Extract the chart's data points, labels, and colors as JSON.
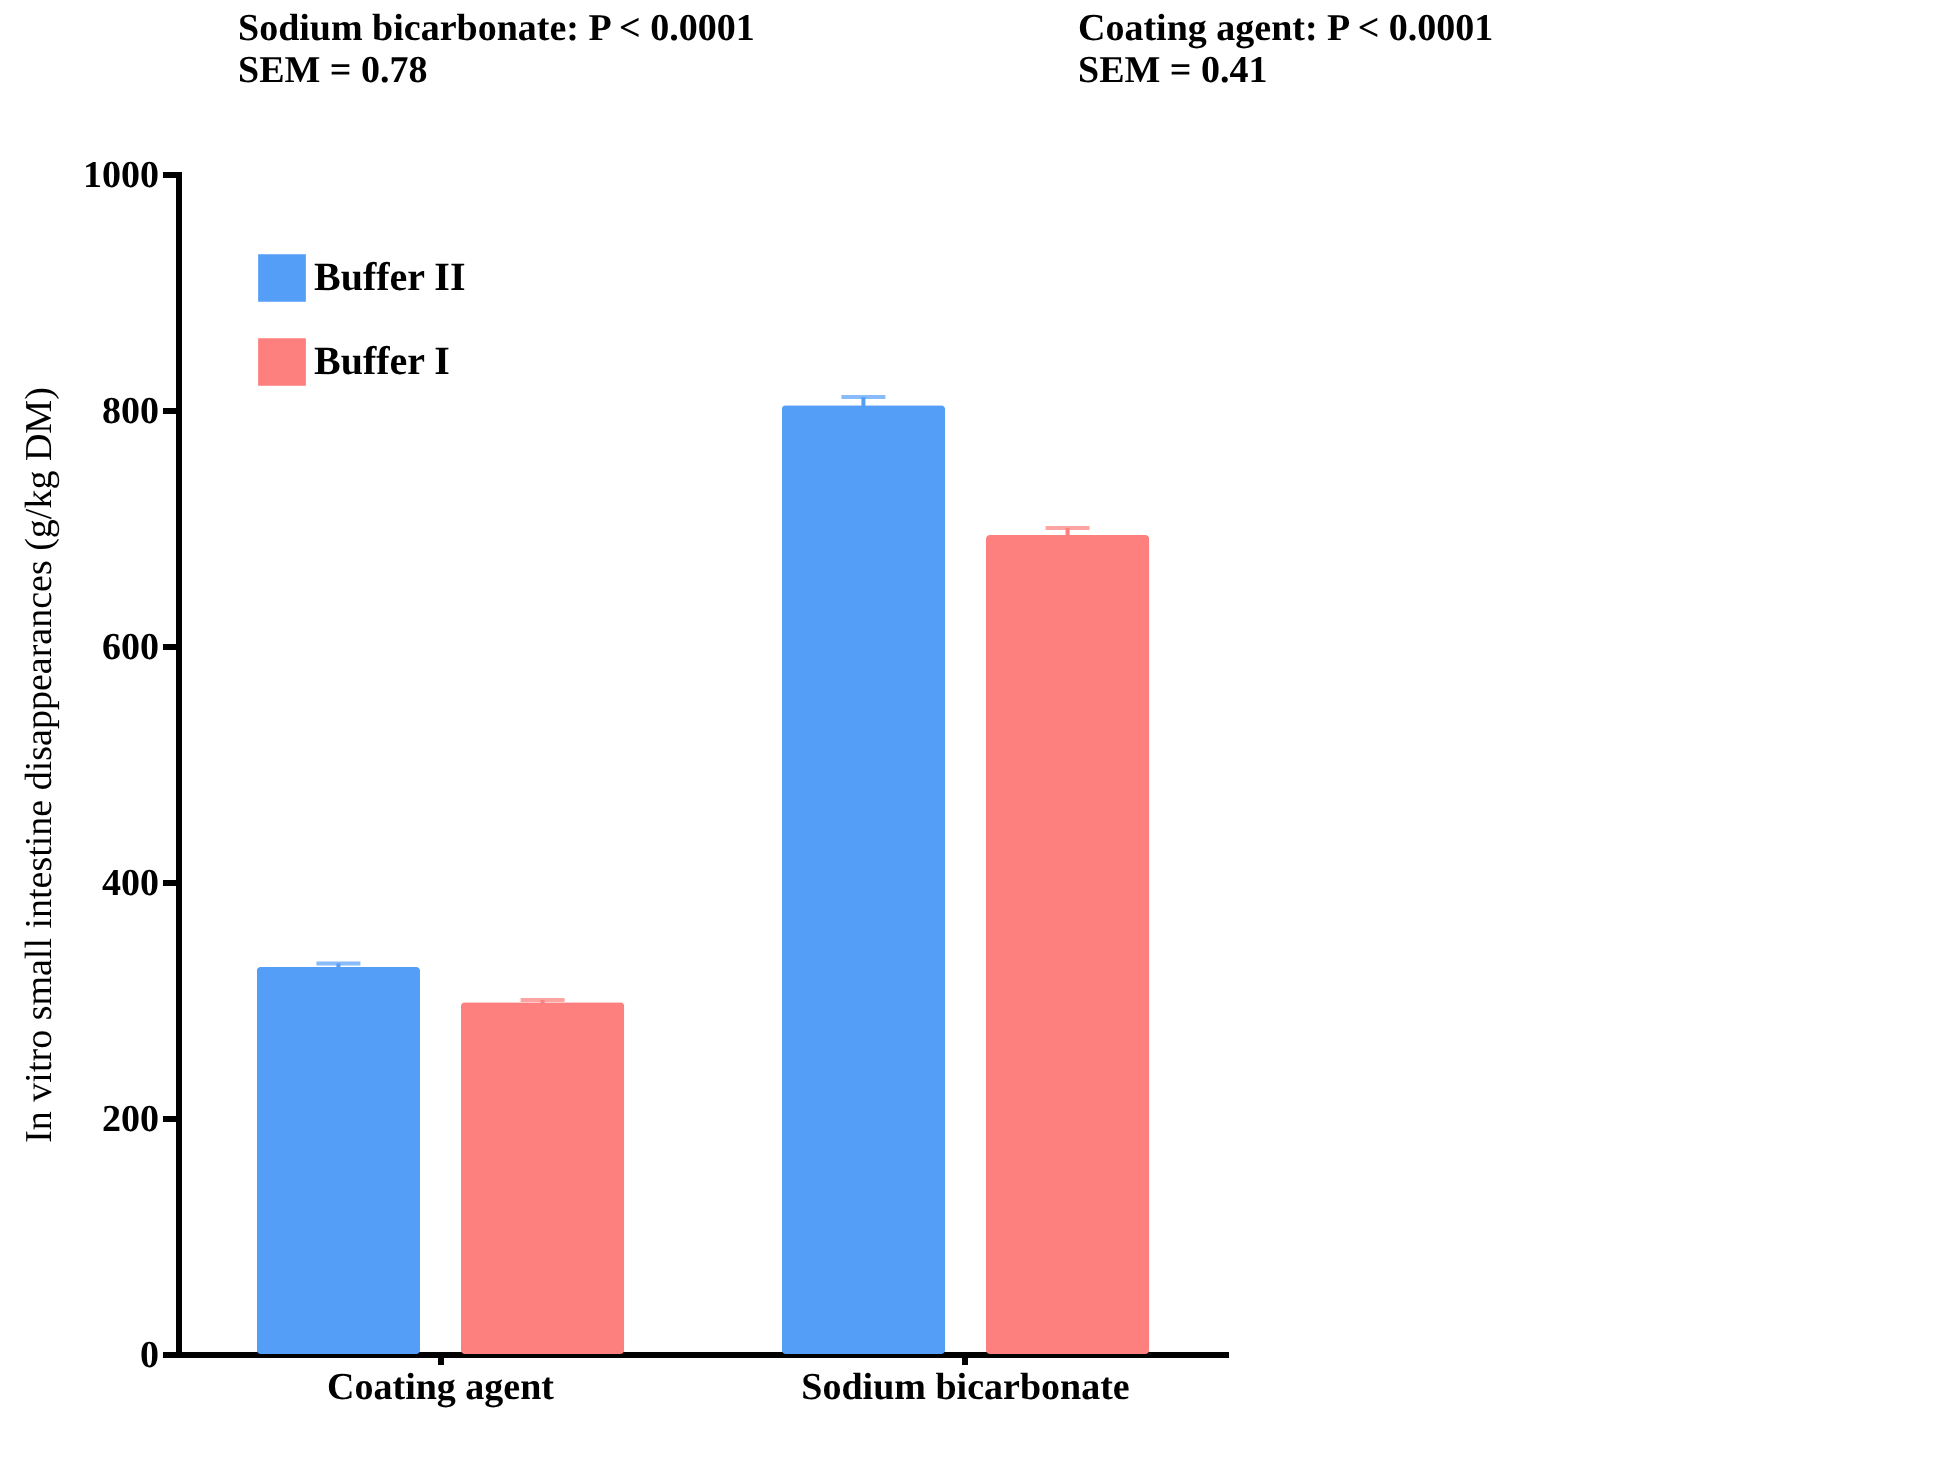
{
  "chart_data": {
    "type": "bar",
    "categories": [
      "Coating agent",
      "Sodium bicarbonate"
    ],
    "series": [
      {
        "name": "Buffer II",
        "color": "#559ef8",
        "values": [
          328,
          804
        ],
        "errors": [
          3,
          7
        ]
      },
      {
        "name": "Buffer I",
        "color": "#fd7f7e",
        "values": [
          298,
          694
        ],
        "errors": [
          2,
          6
        ]
      }
    ],
    "ylabel": "In vitro small intestine disappearances (g/kg DM)",
    "ylim": [
      0,
      1000
    ],
    "yticks": [
      0,
      200,
      400,
      600,
      800,
      1000
    ],
    "annotations": [
      "Sodium bicarbonate: P < 0.0001\nSEM = 0.78",
      "Coating agent: P < 0.0001\nSEM = 0.41"
    ],
    "legend": "top left",
    "grid": false
  }
}
